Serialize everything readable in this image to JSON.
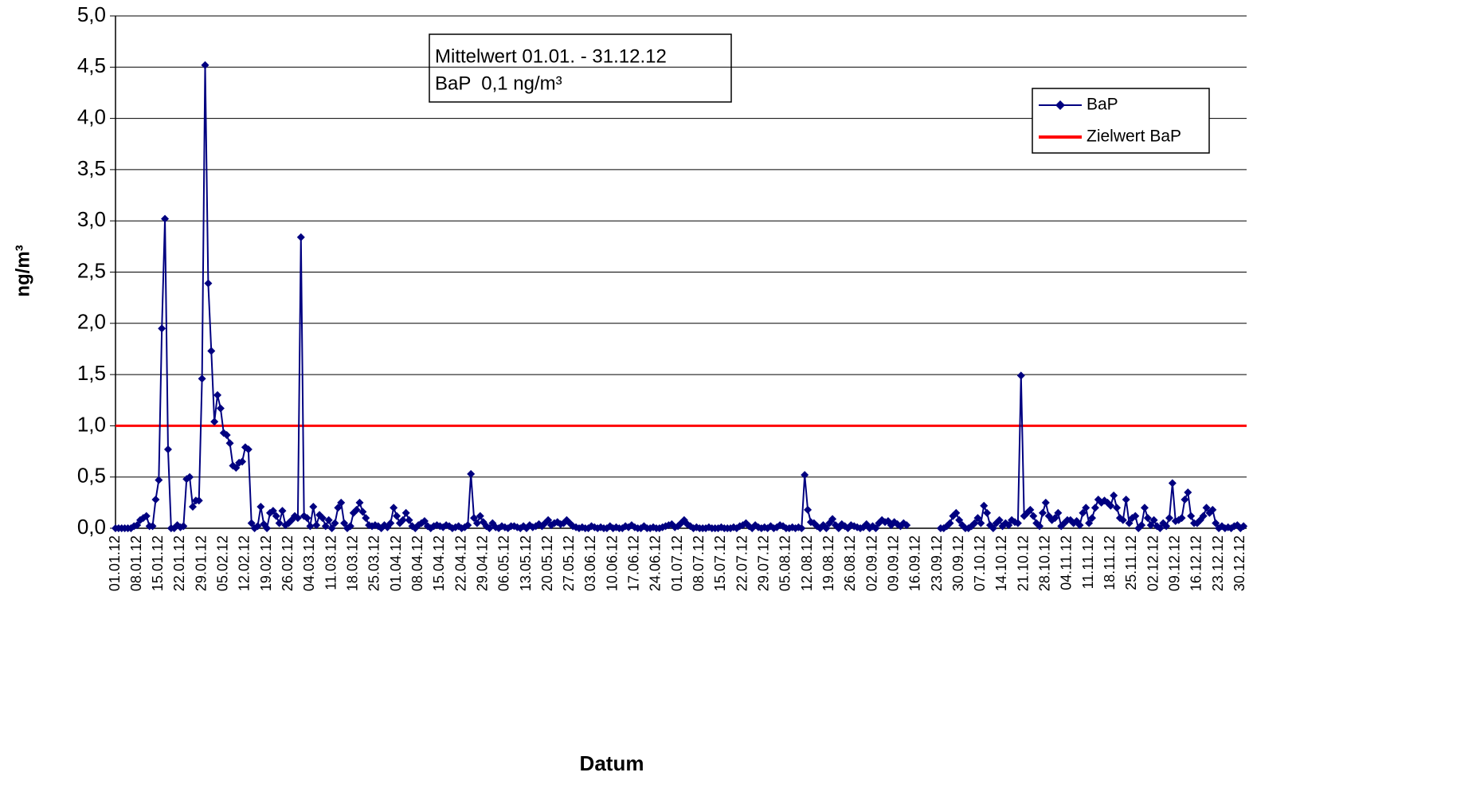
{
  "chart_data": {
    "type": "line",
    "x_label": "Datum",
    "y_label": "ng/m³",
    "annotation": [
      "Mittelwert 01.01. - 31.12.12",
      "BaP  0,1 ng/m³"
    ],
    "ylim": [
      0,
      5
    ],
    "yticks": [
      {
        "value": 0,
        "label": "0,0"
      },
      {
        "value": 0.5,
        "label": "0,5"
      },
      {
        "value": 1,
        "label": "1,0"
      },
      {
        "value": 1.5,
        "label": "1,5"
      },
      {
        "value": 2,
        "label": "2,0"
      },
      {
        "value": 2.5,
        "label": "2,5"
      },
      {
        "value": 3,
        "label": "3,0"
      },
      {
        "value": 3.5,
        "label": "3,5"
      },
      {
        "value": 4,
        "label": "4,0"
      },
      {
        "value": 4.5,
        "label": "4,5"
      },
      {
        "value": 5,
        "label": "5,0"
      }
    ],
    "grid": true,
    "legend": "upper right",
    "categories": [
      "01.01.12",
      null,
      null,
      null,
      null,
      null,
      null,
      "08.01.12",
      null,
      null,
      null,
      null,
      null,
      null,
      "15.01.12",
      null,
      null,
      null,
      null,
      null,
      null,
      "22.01.12",
      null,
      null,
      null,
      null,
      null,
      null,
      "29.01.12",
      null,
      null,
      null,
      null,
      null,
      null,
      "05.02.12",
      null,
      null,
      null,
      null,
      null,
      null,
      "12.02.12",
      null,
      null,
      null,
      null,
      null,
      null,
      "19.02.12",
      null,
      null,
      null,
      null,
      null,
      null,
      "26.02.12",
      null,
      null,
      null,
      null,
      null,
      null,
      "04.03.12",
      null,
      null,
      null,
      null,
      null,
      null,
      "11.03.12",
      null,
      null,
      null,
      null,
      null,
      null,
      "18.03.12",
      null,
      null,
      null,
      null,
      null,
      null,
      "25.03.12",
      null,
      null,
      null,
      null,
      null,
      null,
      "01.04.12",
      null,
      null,
      null,
      null,
      null,
      null,
      "08.04.12",
      null,
      null,
      null,
      null,
      null,
      null,
      "15.04.12",
      null,
      null,
      null,
      null,
      null,
      null,
      "22.04.12",
      null,
      null,
      null,
      null,
      null,
      null,
      "29.04.12",
      null,
      null,
      null,
      null,
      null,
      null,
      "06.05.12",
      null,
      null,
      null,
      null,
      null,
      null,
      "13.05.12",
      null,
      null,
      null,
      null,
      null,
      null,
      "20.05.12",
      null,
      null,
      null,
      null,
      null,
      null,
      "27.05.12",
      null,
      null,
      null,
      null,
      null,
      null,
      "03.06.12",
      null,
      null,
      null,
      null,
      null,
      null,
      "10.06.12",
      null,
      null,
      null,
      null,
      null,
      null,
      "17.06.12",
      null,
      null,
      null,
      null,
      null,
      null,
      "24.06.12",
      null,
      null,
      null,
      null,
      null,
      null,
      "01.07.12",
      null,
      null,
      null,
      null,
      null,
      null,
      "08.07.12",
      null,
      null,
      null,
      null,
      null,
      null,
      "15.07.12",
      null,
      null,
      null,
      null,
      null,
      null,
      "22.07.12",
      null,
      null,
      null,
      null,
      null,
      null,
      "29.07.12",
      null,
      null,
      null,
      null,
      null,
      null,
      "05.08.12",
      null,
      null,
      null,
      null,
      null,
      null,
      "12.08.12",
      null,
      null,
      null,
      null,
      null,
      null,
      "19.08.12",
      null,
      null,
      null,
      null,
      null,
      null,
      "26.08.12",
      null,
      null,
      null,
      null,
      null,
      null,
      "02.09.12",
      null,
      null,
      null,
      null,
      null,
      null,
      "09.09.12",
      null,
      null,
      null,
      null,
      null,
      null,
      "16.09.12",
      null,
      null,
      null,
      null,
      null,
      null,
      "23.09.12",
      null,
      null,
      null,
      null,
      null,
      null,
      "30.09.12",
      null,
      null,
      null,
      null,
      null,
      null,
      "07.10.12",
      null,
      null,
      null,
      null,
      null,
      null,
      "14.10.12",
      null,
      null,
      null,
      null,
      null,
      null,
      "21.10.12",
      null,
      null,
      null,
      null,
      null,
      null,
      "28.10.12",
      null,
      null,
      null,
      null,
      null,
      null,
      "04.11.12",
      null,
      null,
      null,
      null,
      null,
      null,
      "11.11.12",
      null,
      null,
      null,
      null,
      null,
      null,
      "18.11.12",
      null,
      null,
      null,
      null,
      null,
      null,
      "25.11.12",
      null,
      null,
      null,
      null,
      null,
      null,
      "02.12.12",
      null,
      null,
      null,
      null,
      null,
      null,
      "09.12.12",
      null,
      null,
      null,
      null,
      null,
      null,
      "16.12.12",
      null,
      null,
      null,
      null,
      null,
      null,
      "23.12.12",
      null,
      null,
      null,
      null,
      null,
      null,
      "30.12.12",
      null
    ],
    "series": [
      {
        "name": "BaP",
        "color": "#000080",
        "values": [
          0,
          0,
          0,
          0,
          0,
          0,
          0.02,
          0.03,
          0.08,
          0.1,
          0.12,
          0.02,
          0.02,
          0.28,
          0.47,
          1.95,
          3.02,
          0.77,
          0,
          0,
          0.03,
          0.01,
          0.02,
          0.48,
          0.5,
          0.21,
          0.27,
          0.27,
          1.46,
          4.52,
          2.39,
          1.73,
          1.04,
          1.3,
          1.17,
          0.93,
          0.91,
          0.83,
          0.61,
          0.59,
          0.64,
          0.65,
          0.79,
          0.77,
          0.05,
          0,
          0.02,
          0.21,
          0.04,
          0,
          0.15,
          0.17,
          0.12,
          0.05,
          0.17,
          0.03,
          0.05,
          0.08,
          0.12,
          0.1,
          2.84,
          0.12,
          0.1,
          0.02,
          0.21,
          0.03,
          0.13,
          0.1,
          0.02,
          0.08,
          0,
          0.05,
          0.2,
          0.25,
          0.05,
          0,
          0.02,
          0.15,
          0.18,
          0.25,
          0.16,
          0.1,
          0.03,
          0.02,
          0.03,
          0.02,
          0,
          0.03,
          0.01,
          0.05,
          0.2,
          0.12,
          0.05,
          0.08,
          0.15,
          0.08,
          0.02,
          0,
          0.03,
          0.05,
          0.07,
          0.02,
          0,
          0.02,
          0.03,
          0.02,
          0.01,
          0.03,
          0.02,
          0,
          0.01,
          0.02,
          0,
          0.01,
          0.03,
          0.53,
          0.1,
          0.05,
          0.12,
          0.06,
          0.02,
          0,
          0.05,
          0.01,
          0,
          0.02,
          0.01,
          0,
          0.02,
          0.02,
          0.01,
          0,
          0.02,
          0,
          0.03,
          0.01,
          0.02,
          0.04,
          0.02,
          0.05,
          0.08,
          0.03,
          0.05,
          0.06,
          0.04,
          0.05,
          0.08,
          0.05,
          0.02,
          0.01,
          0,
          0.01,
          0,
          0,
          0.02,
          0.01,
          0,
          0.01,
          0,
          0,
          0.02,
          0,
          0.01,
          0,
          0,
          0.02,
          0.01,
          0.03,
          0.01,
          0,
          0,
          0.02,
          0,
          0,
          0.01,
          0,
          0,
          0.01,
          0.02,
          0.03,
          0.04,
          0.01,
          0.02,
          0.05,
          0.08,
          0.04,
          0.02,
          0,
          0.01,
          0,
          0,
          0,
          0.01,
          0,
          0,
          0,
          0.01,
          0,
          0,
          0,
          0.01,
          0,
          0.02,
          0.03,
          0.05,
          0.02,
          0,
          0.03,
          0.01,
          0,
          0.01,
          0,
          0.02,
          0,
          0.01,
          0.03,
          0.02,
          0,
          0,
          0.01,
          0,
          0.01,
          0,
          0.52,
          0.18,
          0.06,
          0.05,
          0.02,
          0,
          0.03,
          0,
          0.05,
          0.09,
          0.03,
          0,
          0.04,
          0.02,
          0,
          0.03,
          0.02,
          0.01,
          0,
          0.01,
          0.04,
          0,
          0.02,
          0,
          0.05,
          0.08,
          0.06,
          0.07,
          0.03,
          0.06,
          0.04,
          0.02,
          0.05,
          0.03,
          null,
          null,
          null,
          null,
          null,
          null,
          null,
          null,
          null,
          null,
          0,
          0,
          0.02,
          0.05,
          0.12,
          0.15,
          0.08,
          0.03,
          0,
          0,
          0.02,
          0.05,
          0.1,
          0.05,
          0.22,
          0.15,
          0.03,
          0,
          0.05,
          0.08,
          0.02,
          0.05,
          0.03,
          0.08,
          0.06,
          0.05,
          1.49,
          0.12,
          0.15,
          0.18,
          0.12,
          0.05,
          0.02,
          0.15,
          0.25,
          0.12,
          0.08,
          0.1,
          0.15,
          0.02,
          0.05,
          0.08,
          0.08,
          0.05,
          0.07,
          0.03,
          0.15,
          0.2,
          0.05,
          0.1,
          0.2,
          0.28,
          0.25,
          0.27,
          0.25,
          0.22,
          0.32,
          0.2,
          0.1,
          0.08,
          0.28,
          0.05,
          0.1,
          0.12,
          0,
          0.03,
          0.2,
          0.1,
          0.03,
          0.08,
          0.02,
          0,
          0.05,
          0.02,
          0.1,
          0.44,
          0.07,
          0.08,
          0.1,
          0.28,
          0.35,
          0.12,
          0.05,
          0.05,
          0.08,
          0.12,
          0.2,
          0.15,
          0.18,
          0.05,
          0,
          0.02,
          0,
          0.01,
          0,
          0.02,
          0.03,
          0,
          0.02
        ]
      }
    ],
    "reference_lines": [
      {
        "name": "Zielwert BaP",
        "value": 1,
        "color": "#ff0000"
      }
    ]
  }
}
